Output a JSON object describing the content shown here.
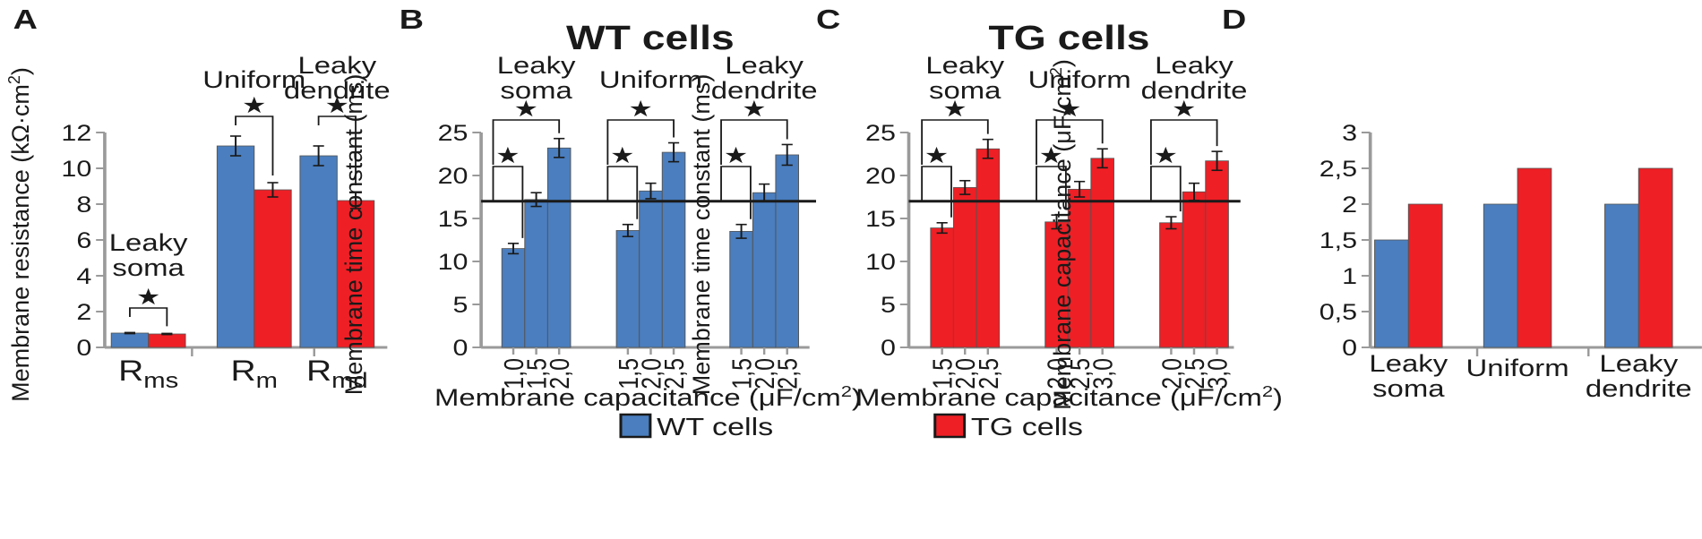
{
  "colors": {
    "wt": "#4a7ebf",
    "tg": "#ee1f25",
    "axis": "#9a9a9a",
    "ink": "#1a1a1a"
  },
  "legend": {
    "wt": "WT cells",
    "tg": "TG cells"
  },
  "chart_data": [
    {
      "panel": "A",
      "type": "bar",
      "ylabel": "Membrane resistance (kΩ·cm",
      "ylabel_sup": "2",
      "ylabel_close": ")",
      "ylim": [
        0,
        12
      ],
      "yticks": [
        "0",
        "2",
        "4",
        "6",
        "8",
        "10",
        "12"
      ],
      "groups": [
        {
          "label": "R",
          "sub": "ms",
          "annot": [
            "Leaky",
            "soma"
          ],
          "star": "★",
          "values": [
            0.8,
            0.75
          ],
          "errors": [
            0.03,
            0.03
          ]
        },
        {
          "label": "R",
          "sub": "m",
          "annot": [
            "Uniform"
          ],
          "star": "★",
          "values": [
            11.25,
            8.8
          ],
          "errors": [
            0.55,
            0.4
          ]
        },
        {
          "label": "R",
          "sub": "md",
          "annot": [
            "Leaky",
            "dendrite"
          ],
          "star": "★",
          "values": [
            10.7,
            8.2
          ],
          "errors": [
            0.55,
            0.45
          ]
        }
      ],
      "series": [
        "WT cells",
        "TG cells"
      ]
    },
    {
      "panel": "B",
      "type": "bar",
      "title": "WT cells",
      "series_color": "wt",
      "ylabel": "Membrane time constant (ms)",
      "xlabel": "Membrane capacitance (μF/cm",
      "xlabel_sup": "2",
      "xlabel_close": ")",
      "ylim": [
        0,
        25
      ],
      "yticks": [
        "0",
        "5",
        "10",
        "15",
        "20",
        "25"
      ],
      "reference_line": 17,
      "groups": [
        {
          "annot": [
            "Leaky",
            "soma"
          ],
          "star": "★",
          "x": [
            "1,0",
            "1,5",
            "2,0"
          ],
          "values": [
            11.5,
            17.2,
            23.2
          ],
          "errors": [
            0.6,
            0.8,
            1.1
          ]
        },
        {
          "annot": [
            "Uniform"
          ],
          "star": "★",
          "x": [
            "1,5",
            "2,0",
            "2,5"
          ],
          "values": [
            13.6,
            18.2,
            22.7
          ],
          "errors": [
            0.7,
            0.9,
            1.1
          ]
        },
        {
          "annot": [
            "Leaky",
            "dendrite"
          ],
          "star": "★",
          "x": [
            "1,5",
            "2,0",
            "2,5"
          ],
          "values": [
            13.5,
            18.0,
            22.4
          ],
          "errors": [
            0.8,
            1.0,
            1.2
          ]
        }
      ]
    },
    {
      "panel": "C",
      "type": "bar",
      "title": "TG cells",
      "series_color": "tg",
      "ylabel": "Membrane time constant (ms)",
      "xlabel": "Membrane capacitance (μF/cm",
      "xlabel_sup": "2",
      "xlabel_close": ")",
      "ylim": [
        0,
        25
      ],
      "yticks": [
        "0",
        "5",
        "10",
        "15",
        "20",
        "25"
      ],
      "reference_line": 17,
      "groups": [
        {
          "annot": [
            "Leaky",
            "soma"
          ],
          "star": "★",
          "x": [
            "1,5",
            "2,0",
            "2,5"
          ],
          "values": [
            13.9,
            18.6,
            23.1
          ],
          "errors": [
            0.6,
            0.8,
            1.1
          ]
        },
        {
          "annot": [
            "Uniform"
          ],
          "star": "★",
          "x": [
            "2,0",
            "2,5",
            "3,0"
          ],
          "values": [
            14.6,
            18.4,
            22.0
          ],
          "errors": [
            0.8,
            0.9,
            1.1
          ]
        },
        {
          "annot": [
            "Leaky",
            "dendrite"
          ],
          "star": "★",
          "x": [
            "2,0",
            "2,5",
            "3,0"
          ],
          "values": [
            14.5,
            18.1,
            21.7
          ],
          "errors": [
            0.7,
            1.0,
            1.1
          ]
        }
      ]
    },
    {
      "panel": "D",
      "type": "bar",
      "ylabel": "Membrane capacitance (μF/cm",
      "ylabel_sup": "2",
      "ylabel_close": ")",
      "ylim": [
        0,
        3
      ],
      "yticks": [
        "0",
        "0,5",
        "1",
        "1,5",
        "2",
        "2,5",
        "3"
      ],
      "categories": [
        [
          "Leaky",
          "soma"
        ],
        [
          "Uniform"
        ],
        [
          "Leaky",
          "dendrite"
        ]
      ],
      "series": [
        {
          "name": "WT cells",
          "values": [
            1.5,
            2.0,
            2.0
          ]
        },
        {
          "name": "TG cells",
          "values": [
            2.0,
            2.5,
            2.5
          ]
        }
      ]
    }
  ]
}
